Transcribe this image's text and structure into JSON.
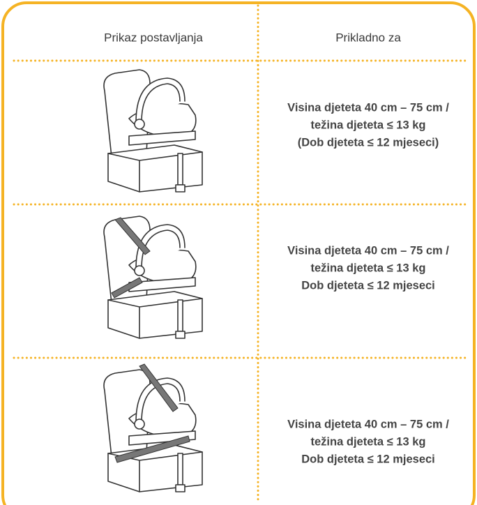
{
  "header": {
    "col1": "Prikaz postavljanja",
    "col2": "Prikladno za"
  },
  "rows": [
    {
      "lines": [
        "Visina djeteta 40 cm – 75 cm /",
        "težina djeteta ≤ 13 kg",
        "(Dob djeteta ≤ 12 mjeseci)"
      ]
    },
    {
      "lines": [
        "Visina djeteta 40 cm – 75 cm /",
        "težina djeteta ≤ 13 kg",
        "Dob djeteta ≤ 12 mjeseci"
      ]
    },
    {
      "lines": [
        "Visina djeteta 40 cm – 75 cm /",
        "težina djeteta ≤ 13 kg",
        "Dob djeteta ≤ 12 mjeseci"
      ]
    }
  ]
}
